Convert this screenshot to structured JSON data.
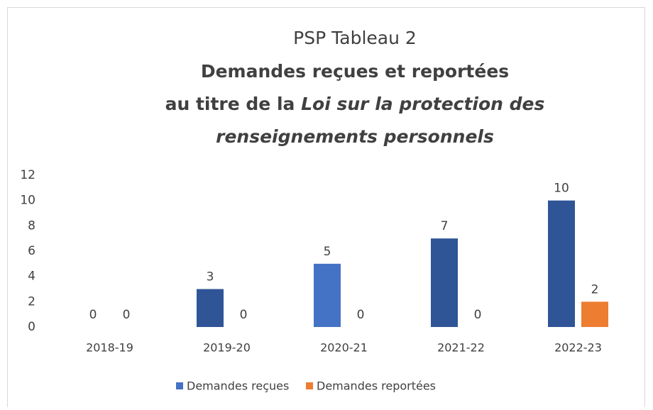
{
  "chart_data": {
    "type": "bar",
    "title": "PSP Tableau 2",
    "subtitle_lines": [
      [
        {
          "text": "Demandes reçues et reportées",
          "italic": false
        }
      ],
      [
        {
          "text": "au titre de la ",
          "italic": false
        },
        {
          "text": "Loi sur la protection des",
          "italic": true
        }
      ],
      [
        {
          "text": "renseignements  personnels",
          "italic": true
        }
      ]
    ],
    "categories": [
      "2018-19",
      "2019-20",
      "2020-21",
      "2021-22",
      "2022-23"
    ],
    "series": [
      {
        "name": "Demandes reçues",
        "color": "#4472c4",
        "colors": [
          "#2f5597",
          "#2f5597",
          "#4472c4",
          "#2f5597",
          "#2f5597"
        ],
        "values": [
          0,
          3,
          5,
          7,
          10
        ]
      },
      {
        "name": "Demandes reportées",
        "color": "#ed7d31",
        "colors": [
          "#ed7d31",
          "#ed7d31",
          "#ed7d31",
          "#ed7d31",
          "#ed7d31"
        ],
        "values": [
          0,
          0,
          0,
          0,
          2
        ]
      }
    ],
    "ylim": [
      0,
      12
    ],
    "yticks": [
      0,
      2,
      4,
      6,
      8,
      10,
      12
    ],
    "grid": false,
    "legend": "bottom"
  }
}
